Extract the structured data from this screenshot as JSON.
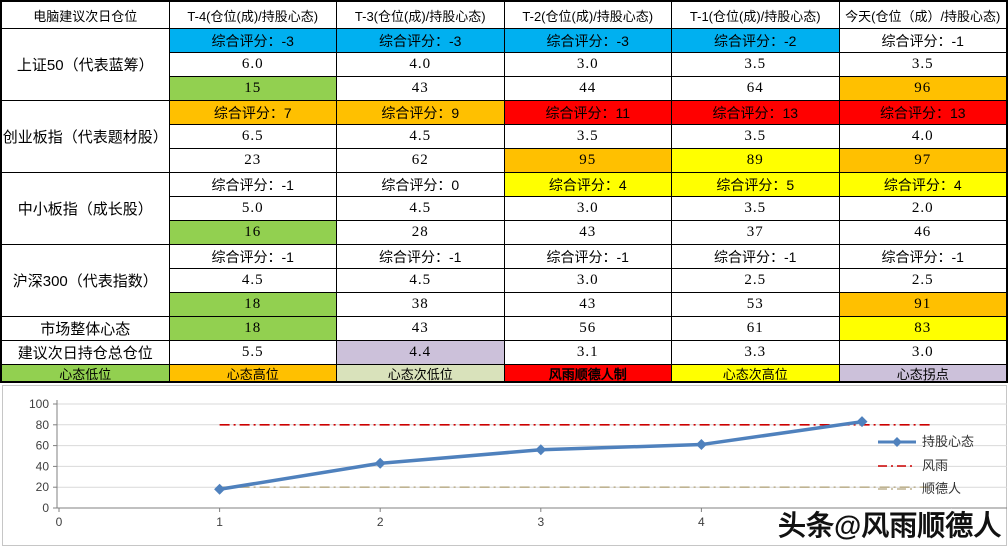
{
  "colors": {
    "blue": "#00B0F0",
    "green": "#92D050",
    "orange": "#FFC000",
    "red": "#FF0000",
    "yellow": "#FFFF00",
    "palegreen": "#D9E2BB",
    "lavender": "#CCC1DA",
    "white": "#FFFFFF",
    "series_blue": "#4F81BD",
    "series_red": "#CC0000",
    "series_tan": "#BFB392",
    "grid": "#D9D9D9",
    "axis": "#808080"
  },
  "table": {
    "header": [
      "电脑建议次日仓位",
      "T-4(仓位(成)/持股心态)",
      "T-3(仓位(成)/持股心态)",
      "T-2(仓位(成)/持股心态)",
      "T-1(仓位(成)/持股心态)",
      "今天(仓位（成）/持股心态)"
    ],
    "groups": [
      {
        "label": "上证50（代表蓝筹）",
        "score": [
          {
            "t": "综合评分：-3",
            "bg": "blue"
          },
          {
            "t": "综合评分：-3",
            "bg": "blue"
          },
          {
            "t": "综合评分：-3",
            "bg": "blue"
          },
          {
            "t": "综合评分：-2",
            "bg": "blue"
          },
          {
            "t": "综合评分：-1",
            "bg": "white"
          }
        ],
        "position": [
          {
            "t": "6.0",
            "bg": "white"
          },
          {
            "t": "4.0",
            "bg": "white"
          },
          {
            "t": "3.0",
            "bg": "white"
          },
          {
            "t": "3.5",
            "bg": "white"
          },
          {
            "t": "3.5",
            "bg": "white"
          }
        ],
        "mood": [
          {
            "t": "15",
            "bg": "green"
          },
          {
            "t": "43",
            "bg": "white"
          },
          {
            "t": "44",
            "bg": "white"
          },
          {
            "t": "64",
            "bg": "white"
          },
          {
            "t": "96",
            "bg": "orange"
          }
        ]
      },
      {
        "label": "创业板指（代表题材股）",
        "score": [
          {
            "t": "综合评分：7",
            "bg": "orange"
          },
          {
            "t": "综合评分：9",
            "bg": "orange"
          },
          {
            "t": "综合评分：11",
            "bg": "red"
          },
          {
            "t": "综合评分：13",
            "bg": "red"
          },
          {
            "t": "综合评分：13",
            "bg": "red"
          }
        ],
        "position": [
          {
            "t": "6.5",
            "bg": "white"
          },
          {
            "t": "4.5",
            "bg": "white"
          },
          {
            "t": "3.5",
            "bg": "white"
          },
          {
            "t": "3.5",
            "bg": "white"
          },
          {
            "t": "4.0",
            "bg": "white"
          }
        ],
        "mood": [
          {
            "t": "23",
            "bg": "white"
          },
          {
            "t": "62",
            "bg": "white"
          },
          {
            "t": "95",
            "bg": "orange"
          },
          {
            "t": "89",
            "bg": "yellow"
          },
          {
            "t": "97",
            "bg": "orange"
          }
        ]
      },
      {
        "label": "中小板指（成长股）",
        "score": [
          {
            "t": "综合评分：-1",
            "bg": "white"
          },
          {
            "t": "综合评分：0",
            "bg": "white"
          },
          {
            "t": "综合评分：4",
            "bg": "yellow"
          },
          {
            "t": "综合评分：5",
            "bg": "yellow"
          },
          {
            "t": "综合评分：4",
            "bg": "yellow"
          }
        ],
        "position": [
          {
            "t": "5.0",
            "bg": "white"
          },
          {
            "t": "4.5",
            "bg": "white"
          },
          {
            "t": "3.0",
            "bg": "white"
          },
          {
            "t": "3.5",
            "bg": "white"
          },
          {
            "t": "2.0",
            "bg": "white"
          }
        ],
        "mood": [
          {
            "t": "16",
            "bg": "green"
          },
          {
            "t": "28",
            "bg": "white"
          },
          {
            "t": "43",
            "bg": "white"
          },
          {
            "t": "37",
            "bg": "white"
          },
          {
            "t": "46",
            "bg": "white"
          }
        ]
      },
      {
        "label": "沪深300（代表指数）",
        "score": [
          {
            "t": "综合评分：-1",
            "bg": "white"
          },
          {
            "t": "综合评分：-1",
            "bg": "white"
          },
          {
            "t": "综合评分：-1",
            "bg": "white"
          },
          {
            "t": "综合评分：-1",
            "bg": "white"
          },
          {
            "t": "综合评分：-1",
            "bg": "white"
          }
        ],
        "position": [
          {
            "t": "4.5",
            "bg": "white"
          },
          {
            "t": "4.5",
            "bg": "white"
          },
          {
            "t": "3.0",
            "bg": "white"
          },
          {
            "t": "2.5",
            "bg": "white"
          },
          {
            "t": "2.5",
            "bg": "white"
          }
        ],
        "mood": [
          {
            "t": "18",
            "bg": "green"
          },
          {
            "t": "38",
            "bg": "white"
          },
          {
            "t": "43",
            "bg": "white"
          },
          {
            "t": "53",
            "bg": "white"
          },
          {
            "t": "91",
            "bg": "orange"
          }
        ]
      }
    ],
    "summary_rows": [
      {
        "label": "市场整体心态",
        "cells": [
          {
            "t": "18",
            "bg": "green"
          },
          {
            "t": "43",
            "bg": "white"
          },
          {
            "t": "56",
            "bg": "white"
          },
          {
            "t": "61",
            "bg": "white"
          },
          {
            "t": "83",
            "bg": "yellow"
          }
        ]
      },
      {
        "label": "建议次日持仓总仓位",
        "cells": [
          {
            "t": "5.5",
            "bg": "white"
          },
          {
            "t": "4.4",
            "bg": "lavender"
          },
          {
            "t": "3.1",
            "bg": "white"
          },
          {
            "t": "3.3",
            "bg": "white"
          },
          {
            "t": "3.0",
            "bg": "white"
          }
        ]
      }
    ],
    "legend_row": [
      {
        "t": "心态低位",
        "bg": "green"
      },
      {
        "t": "心态高位",
        "bg": "orange"
      },
      {
        "t": "心态次低位",
        "bg": "palegreen"
      },
      {
        "t": "风雨顺德人制",
        "bg": "red",
        "bold": true
      },
      {
        "t": "心态次高位",
        "bg": "yellow"
      },
      {
        "t": "心态拐点",
        "bg": "lavender"
      }
    ]
  },
  "chart_data": {
    "type": "line",
    "x": [
      1,
      2,
      3,
      4,
      5
    ],
    "series": [
      {
        "name": "持股心态",
        "kind": "line",
        "values": [
          18,
          43,
          56,
          61,
          83
        ],
        "color": "#4F81BD",
        "marker": "diamond"
      },
      {
        "name": "风雨",
        "kind": "hline",
        "value": 80,
        "color": "#CC0000",
        "dash": "dashdot"
      },
      {
        "name": "顺德人",
        "kind": "hline",
        "value": 20,
        "color": "#BFB392",
        "dash": "dashdot"
      }
    ],
    "x_ticks": [
      "0",
      "1",
      "2",
      "3",
      "4"
    ],
    "y_ticks": [
      "0",
      "20",
      "40",
      "60",
      "80",
      "100"
    ],
    "xlim": [
      0,
      5.9
    ],
    "ylim": [
      0,
      100
    ],
    "grid": true,
    "legend_position": "right",
    "title": ""
  },
  "watermark": "头条@风雨顺德人"
}
